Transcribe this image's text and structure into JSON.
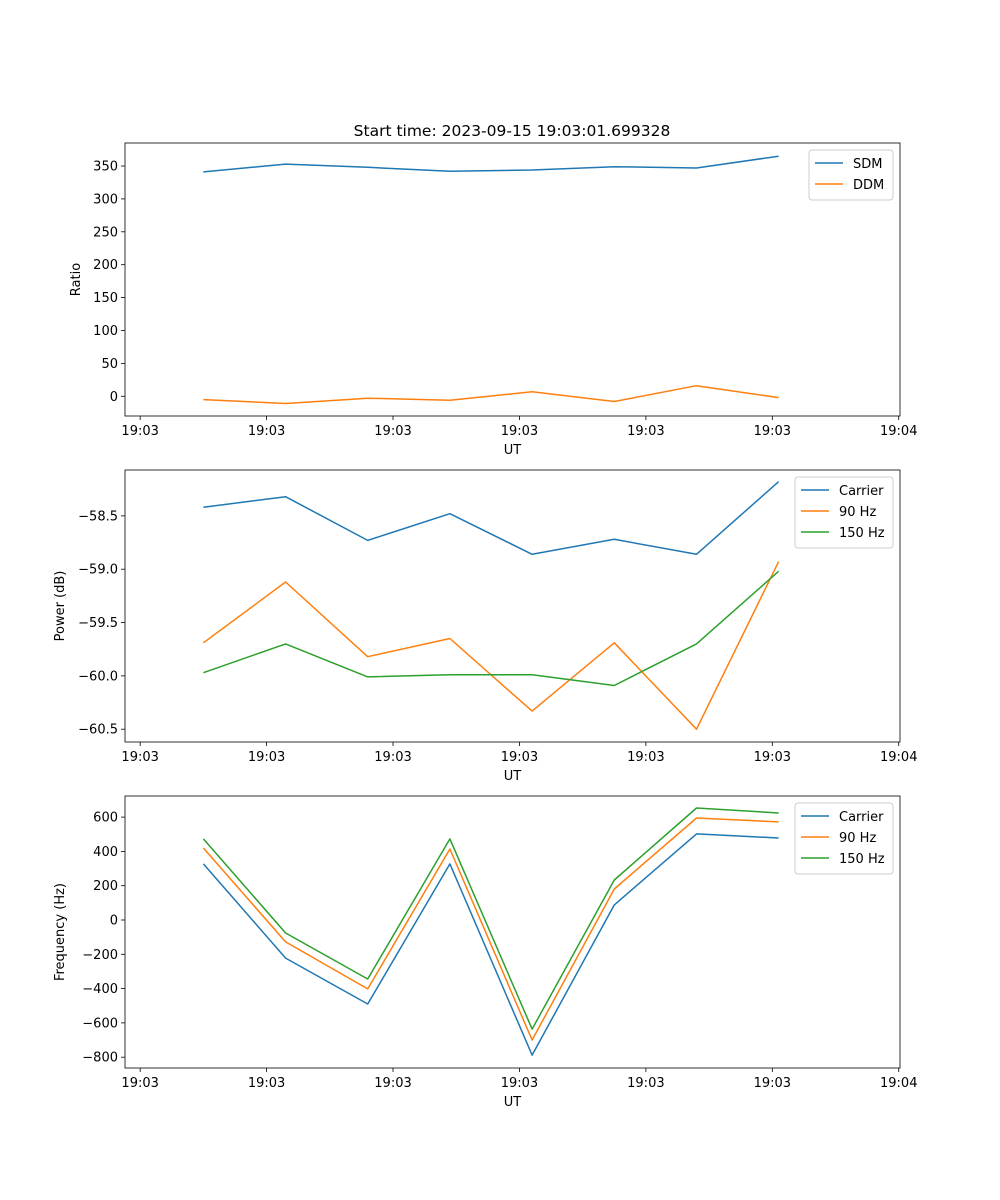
{
  "title": "Start time: 2023-09-15 19:03:01.699328",
  "colors": {
    "blue": "#1f77b4",
    "orange": "#ff7f0e",
    "green": "#2ca02c"
  },
  "chart_data": [
    {
      "type": "line",
      "xlabel": "UT",
      "ylabel": "Ratio",
      "x_seconds": [
        5,
        11.5,
        18,
        24.5,
        31,
        37.5,
        44,
        50.5
      ],
      "xlim": [
        -1.2,
        60.1
      ],
      "x_ticks": [
        0,
        10,
        20,
        30,
        40,
        50,
        60
      ],
      "x_tick_labels": [
        "19:03",
        "19:03",
        "19:03",
        "19:03",
        "19:03",
        "19:03",
        "19:04"
      ],
      "ylim": [
        -30,
        385
      ],
      "y_ticks": [
        0,
        50,
        100,
        150,
        200,
        250,
        300,
        350
      ],
      "y_tick_labels": [
        "0",
        "50",
        "100",
        "150",
        "200",
        "250",
        "300",
        "350"
      ],
      "legend": "top-right",
      "series": [
        {
          "name": "SDM",
          "color": "#1f77b4",
          "values": [
            341,
            353,
            348,
            342,
            344,
            349,
            347,
            365
          ]
        },
        {
          "name": "DDM",
          "color": "#ff7f0e",
          "values": [
            -5,
            -11,
            -3,
            -6,
            7,
            -8,
            16,
            -2
          ]
        }
      ]
    },
    {
      "type": "line",
      "xlabel": "UT",
      "ylabel": "Power (dB)",
      "x_seconds": [
        5,
        11.5,
        18,
        24.5,
        31,
        37.5,
        44,
        50.5
      ],
      "xlim": [
        -1.2,
        60.1
      ],
      "x_ticks": [
        0,
        10,
        20,
        30,
        40,
        50,
        60
      ],
      "x_tick_labels": [
        "19:03",
        "19:03",
        "19:03",
        "19:03",
        "19:03",
        "19:03",
        "19:04"
      ],
      "ylim": [
        -60.62,
        -58.07
      ],
      "y_ticks": [
        -60.5,
        -60.0,
        -59.5,
        -59.0,
        -58.5
      ],
      "y_tick_labels": [
        "−60.5",
        "−60.0",
        "−59.5",
        "−59.0",
        "−58.5"
      ],
      "legend": "top-right",
      "series": [
        {
          "name": "Carrier",
          "color": "#1f77b4",
          "values": [
            -58.42,
            -58.32,
            -58.73,
            -58.48,
            -58.86,
            -58.72,
            -58.86,
            -58.18
          ]
        },
        {
          "name": "90 Hz",
          "color": "#ff7f0e",
          "values": [
            -59.69,
            -59.12,
            -59.82,
            -59.65,
            -60.33,
            -59.69,
            -60.5,
            -58.93
          ]
        },
        {
          "name": "150 Hz",
          "color": "#2ca02c",
          "values": [
            -59.97,
            -59.7,
            -60.01,
            -59.99,
            -59.99,
            -60.09,
            -59.7,
            -59.02
          ]
        }
      ]
    },
    {
      "type": "line",
      "xlabel": "UT",
      "ylabel": "Frequency (Hz)",
      "x_seconds": [
        5,
        11.5,
        18,
        24.5,
        31,
        37.5,
        44,
        50.5
      ],
      "xlim": [
        -1.2,
        60.1
      ],
      "x_ticks": [
        0,
        10,
        20,
        30,
        40,
        50,
        60
      ],
      "x_tick_labels": [
        "19:03",
        "19:03",
        "19:03",
        "19:03",
        "19:03",
        "19:03",
        "19:04"
      ],
      "ylim": [
        -863,
        723
      ],
      "y_ticks": [
        -800,
        -600,
        -400,
        -200,
        0,
        200,
        400,
        600
      ],
      "y_tick_labels": [
        "−800",
        "−600",
        "−400",
        "−200",
        "0",
        "200",
        "400",
        "600"
      ],
      "legend": "top-right",
      "series": [
        {
          "name": "Carrier",
          "color": "#1f77b4",
          "values": [
            327,
            -222,
            -490,
            327,
            -788,
            88,
            502,
            478
          ]
        },
        {
          "name": "90 Hz",
          "color": "#ff7f0e",
          "values": [
            420,
            -128,
            -402,
            414,
            -700,
            181,
            595,
            572
          ]
        },
        {
          "name": "150 Hz",
          "color": "#2ca02c",
          "values": [
            473,
            -76,
            -344,
            473,
            -636,
            233,
            653,
            624
          ]
        }
      ]
    }
  ]
}
